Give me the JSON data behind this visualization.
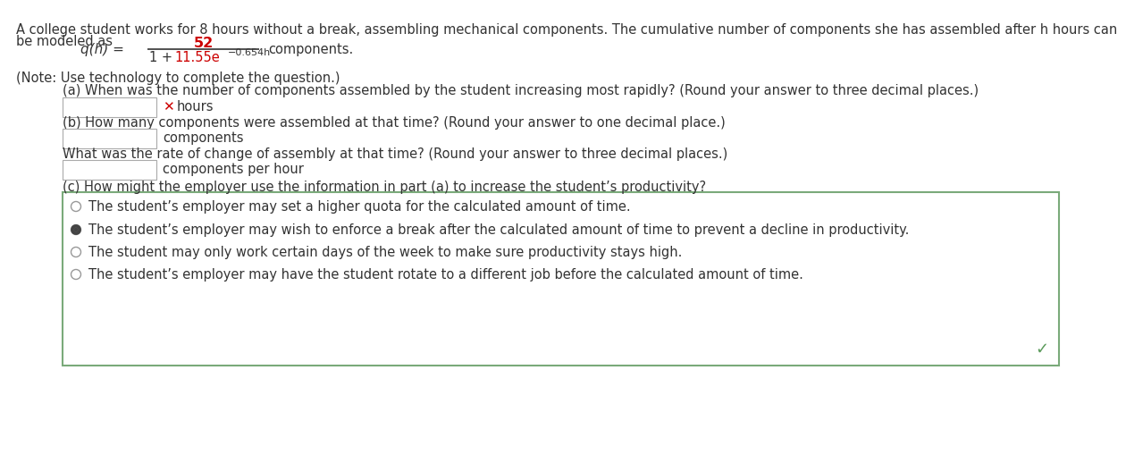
{
  "background_color": "#ffffff",
  "text_color": "#333333",
  "red_color": "#cc0000",
  "x_color": "#cc0000",
  "box_border_color": "#7aaa7a",
  "checkmark_color": "#5a9a5a",
  "input_box_border": "#aaaaaa",
  "intro_line1": "A college student works for 8 hours without a break, assembling mechanical components. The cumulative number of components she has assembled after h hours can",
  "intro_line2": "be modeled as",
  "formula_left": "q(h) =",
  "formula_numerator": "52",
  "formula_denominator_1": "1 + ",
  "formula_denominator_2": "11.55e",
  "formula_exponent": "-0.654h",
  "formula_suffix": "components.",
  "note_text": "(Note: Use technology to complete the question.)",
  "part_a_label": "(a) When was the number of components assembled by the student increasing most rapidly? (Round your answer to three decimal places.)",
  "part_a_unit": "hours",
  "part_b_label": "(b) How many components were assembled at that time? (Round your answer to one decimal place.)",
  "part_b_unit": "components",
  "part_b2_label": "What was the rate of change of assembly at that time? (Round your answer to three decimal places.)",
  "part_b2_unit": "components per hour",
  "part_c_label": "(c) How might the employer use the information in part (a) to increase the student’s productivity?",
  "radio_options": [
    "The student’s employer may set a higher quota for the calculated amount of time.",
    "The student’s employer may wish to enforce a break after the calculated amount of time to prevent a decline in productivity.",
    "The student may only work certain days of the week to make sure productivity stays high.",
    "The student’s employer may have the student rotate to a different job before the calculated amount of time."
  ],
  "selected_option_index": 1
}
